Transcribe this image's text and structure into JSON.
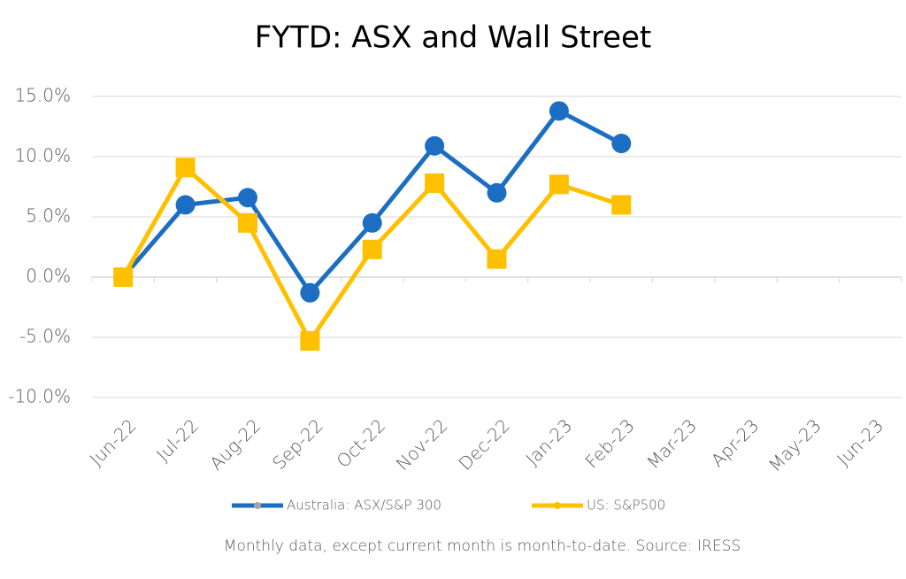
{
  "chart_data": {
    "type": "line",
    "title": "FYTD: ASX and Wall Street",
    "footnote": "Monthly data, except current month is month-to-date.  Source: IRESS",
    "categories": [
      "Jun-22",
      "Jul-22",
      "Aug-22",
      "Sep-22",
      "Oct-22",
      "Nov-22",
      "Dec-22",
      "Jan-23",
      "Feb-23",
      "Mar-23",
      "Apr-23",
      "May-23",
      "Jun-23"
    ],
    "series": [
      {
        "name": "Australia: ASX/S&P 300",
        "color": "#1b6ec2",
        "marker": "circle",
        "values": [
          0,
          6.0,
          6.6,
          -1.3,
          4.5,
          10.9,
          7.0,
          13.8,
          11.1,
          null,
          null,
          null,
          null
        ]
      },
      {
        "name": "US: S&P500",
        "color": "#ffc000",
        "marker": "square",
        "values": [
          0,
          9.1,
          4.5,
          -5.3,
          2.3,
          7.8,
          1.5,
          7.7,
          6.0,
          null,
          null,
          null,
          null
        ]
      }
    ],
    "ylim": [
      -10,
      15
    ],
    "yticks": [
      {
        "value": -10,
        "label": "-10.0%"
      },
      {
        "value": -5,
        "label": "-5.0%"
      },
      {
        "value": 0,
        "label": "0.0%"
      },
      {
        "value": 5,
        "label": "5.0%"
      },
      {
        "value": 10,
        "label": "10.0%"
      },
      {
        "value": 15,
        "label": "15.0%"
      }
    ],
    "grid": true,
    "legend": "bottom"
  }
}
